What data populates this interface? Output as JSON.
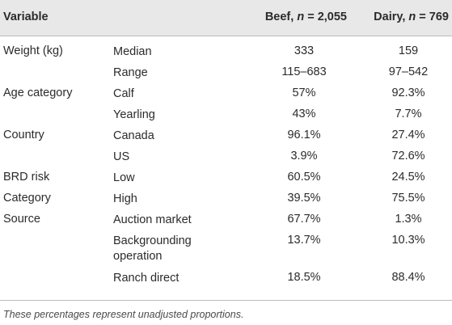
{
  "header": {
    "variable": "Variable",
    "beef_label": "Beef, ",
    "beef_n": "n",
    "beef_count": " = 2,055",
    "dairy_label": "Dairy, ",
    "dairy_n": "n",
    "dairy_count": " = 769"
  },
  "rows": [
    {
      "variable": "Weight (kg)",
      "sub": "Median",
      "beef": "333",
      "dairy": "159"
    },
    {
      "variable": "",
      "sub": "Range",
      "beef": "115–683",
      "dairy": "97–542"
    },
    {
      "variable": "Age category",
      "sub": "Calf",
      "beef": "57%",
      "dairy": "92.3%"
    },
    {
      "variable": "",
      "sub": "Yearling",
      "beef": "43%",
      "dairy": "7.7%"
    },
    {
      "variable": "Country",
      "sub": "Canada",
      "beef": "96.1%",
      "dairy": "27.4%"
    },
    {
      "variable": "",
      "sub": "US",
      "beef": "3.9%",
      "dairy": "72.6%"
    },
    {
      "variable": "BRD risk",
      "sub": "Low",
      "beef": "60.5%",
      "dairy": "24.5%"
    },
    {
      "variable": "Category",
      "sub": "High",
      "beef": "39.5%",
      "dairy": "75.5%"
    },
    {
      "variable": "Source",
      "sub": "Auction market",
      "beef": "67.7%",
      "dairy": "1.3%"
    },
    {
      "variable": "",
      "sub": "Backgrounding\noperation",
      "beef": "13.7%",
      "dairy": "10.3%"
    },
    {
      "variable": "",
      "sub": "Ranch direct",
      "beef": "18.5%",
      "dairy": "88.4%"
    }
  ],
  "footnote": "These percentages represent unadjusted proportions."
}
